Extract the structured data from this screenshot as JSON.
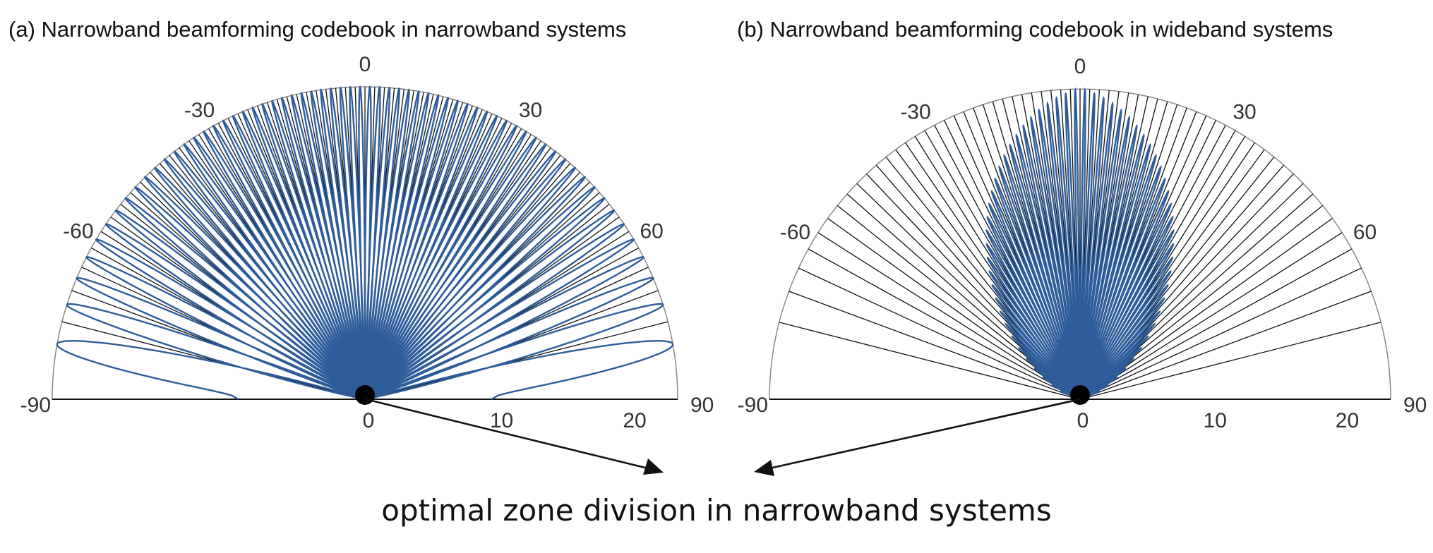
{
  "colors": {
    "beam": "#2e5d9a",
    "line": "#111111",
    "rim": "#888888"
  },
  "chart_data": [
    {
      "type": "polar",
      "title": "(a) Narrowband beamforming codebook in narrowband systems",
      "angle_ticks": [
        -90,
        -60,
        -30,
        0,
        30,
        60,
        90
      ],
      "angle_tick_labels": [
        "-90",
        "-60",
        "-30",
        "0",
        "30",
        "60",
        "90"
      ],
      "radial_ticks": [
        0,
        10,
        20
      ],
      "radial_tick_labels": [
        "0",
        "10",
        "20"
      ],
      "radial_max": 23.5,
      "codebook_size": 64,
      "beam_peak_gain": 23.5,
      "beams_split": false
    },
    {
      "type": "polar",
      "title": "(b) Narrowband beamforming codebook in wideband systems",
      "angle_ticks": [
        -90,
        -60,
        -30,
        0,
        30,
        60,
        90
      ],
      "angle_tick_labels": [
        "-90",
        "-60",
        "-30",
        "0",
        "30",
        "60",
        "90"
      ],
      "radial_ticks": [
        0,
        10,
        20
      ],
      "radial_tick_labels": [
        "0",
        "10",
        "20"
      ],
      "radial_max": 23.5,
      "codebook_size": 64,
      "beam_peak_gain": 23.5,
      "beams_split": true
    }
  ],
  "annotation": {
    "caption": "optimal zone division in narrowband systems"
  }
}
